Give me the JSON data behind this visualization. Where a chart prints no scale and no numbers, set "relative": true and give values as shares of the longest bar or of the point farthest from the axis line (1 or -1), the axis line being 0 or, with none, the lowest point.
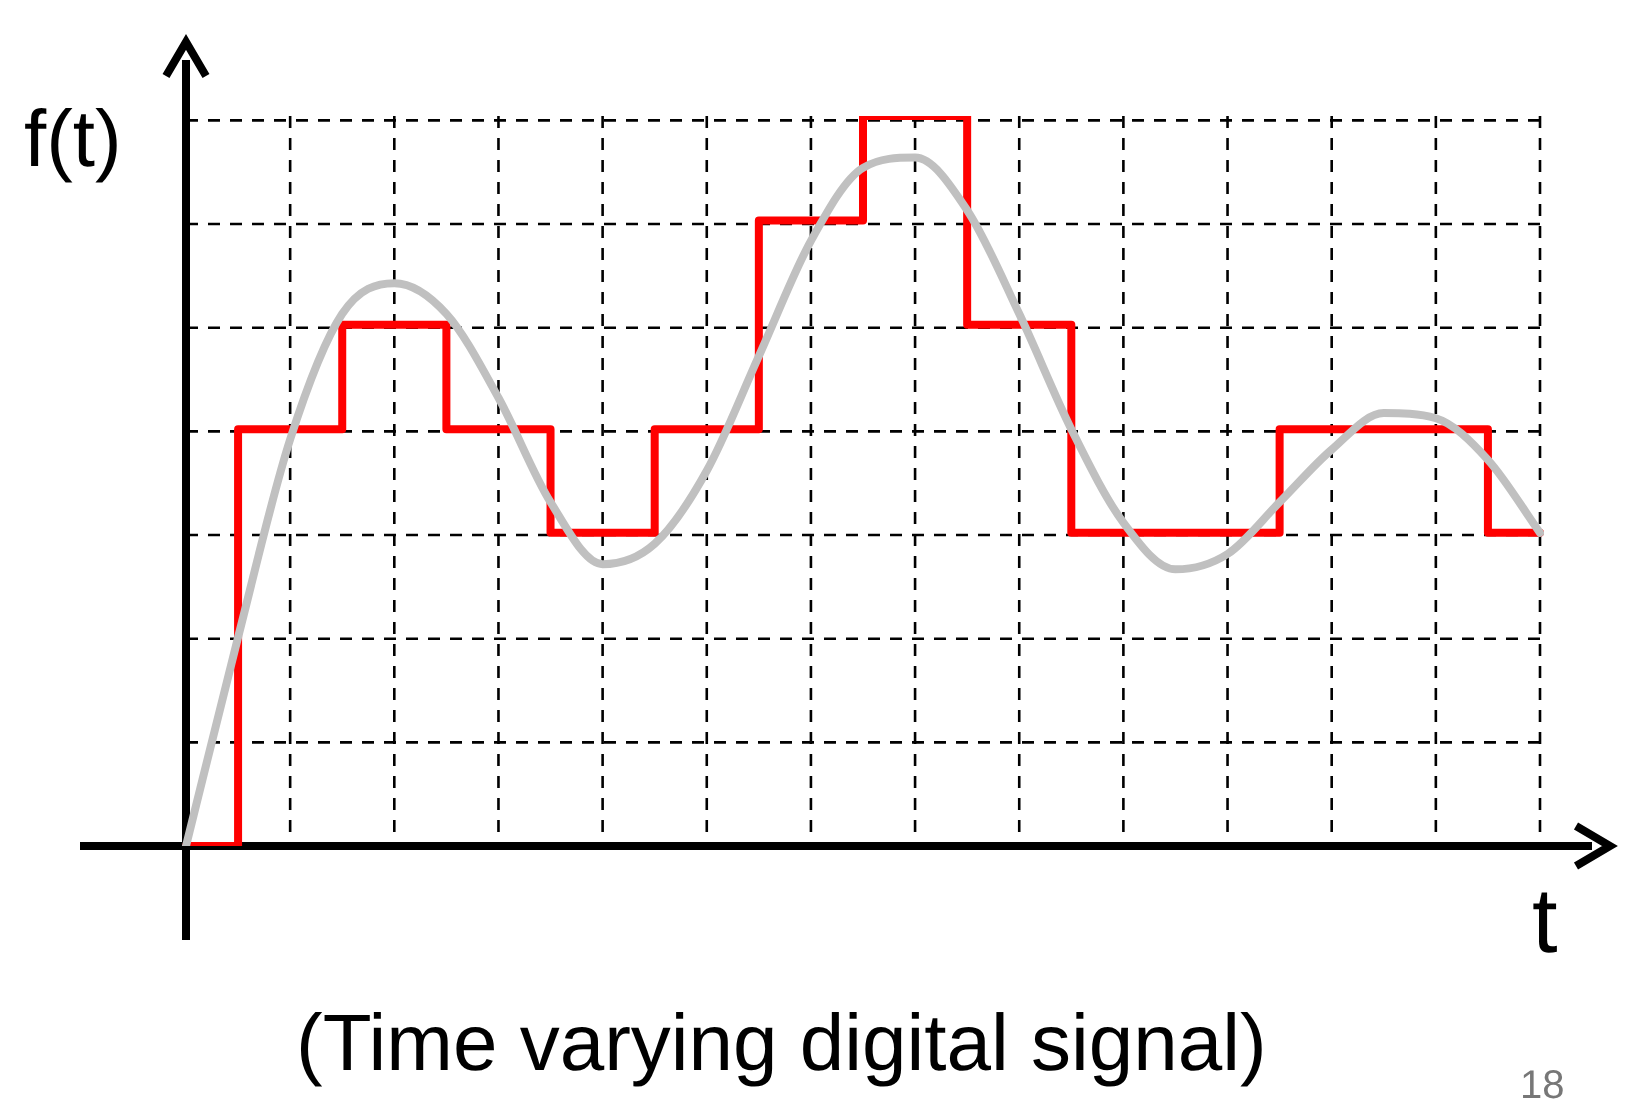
{
  "chart_data": {
    "type": "line",
    "relative": true,
    "ylabel": "f(t)",
    "xlabel": "t",
    "grid": true,
    "legend": false,
    "line_style": "solid",
    "marker": "none",
    "categories": [
      null,
      null,
      null,
      null,
      null,
      null,
      null,
      null,
      null,
      null,
      null,
      null,
      null,
      null,
      null,
      null,
      null,
      null,
      null,
      null,
      null,
      null,
      null,
      null,
      null,
      null,
      null
    ],
    "series": [
      {
        "type": "line",
        "color": "#c0c0c0",
        "values": [
          0,
          0.286,
          0.557,
          0.729,
          0.771,
          0.729,
          0.614,
          0.471,
          0.386,
          0.414,
          0.514,
          0.671,
          0.829,
          0.929,
          0.943,
          0.871,
          0.729,
          0.571,
          0.443,
          0.379,
          0.4,
          0.471,
          0.543,
          0.593,
          0.586,
          0.529,
          0.429
        ]
      },
      {
        "type": "step",
        "color": "#ff0000",
        "values": [
          0,
          0,
          0.571,
          0.571,
          0.714,
          0.714,
          0.571,
          0.571,
          0.429,
          0.429,
          0.571,
          0.571,
          0.857,
          0.857,
          1,
          1,
          0.714,
          0.714,
          0.429,
          0.429,
          0.429,
          0.429,
          0.571,
          0.571,
          0.571,
          0.571,
          0.429
        ]
      }
    ],
    "annotations": [
      "(Time varying digital signal)",
      "18"
    ]
  }
}
